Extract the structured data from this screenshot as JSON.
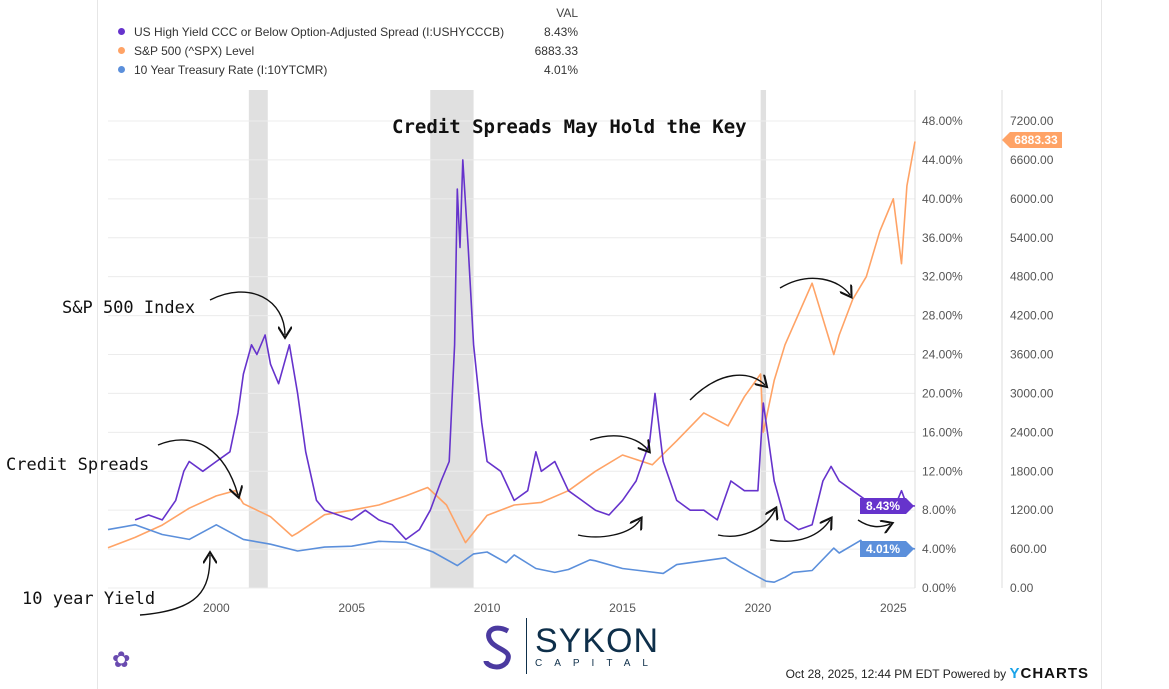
{
  "legend": {
    "header": "VAL",
    "items": [
      {
        "label": "US High Yield CCC or Below Option-Adjusted Spread (I:USHYCCCB)",
        "value": "8.43%",
        "color": "#6633cc"
      },
      {
        "label": "S&P 500 (^SPX) Level",
        "value": "6883.33",
        "color": "#ffa366"
      },
      {
        "label": "10 Year Treasury Rate (I:10YTCMR)",
        "value": "4.01%",
        "color": "#5b8fdb"
      }
    ]
  },
  "annotations": {
    "title": "Credit Spreads May Hold the Key",
    "sp500": "S&P 500 Index",
    "spreads": "Credit Spreads",
    "yield": "10 year Yield"
  },
  "footer": {
    "timestamp": "Oct 28, 2025, 12:44 PM EDT Powered by",
    "brand_y": "Y",
    "brand_rest": "CHARTS"
  },
  "logo": {
    "name": "SYKON",
    "sub": "CAPITAL"
  },
  "chart_data": {
    "type": "line",
    "title": "Credit Spreads May Hold the Key",
    "x_ticks": [
      2000,
      2005,
      2010,
      2015,
      2020,
      2025
    ],
    "xlim": [
      1996.0,
      2025.8
    ],
    "left_axis": {
      "ylim": [
        0,
        48
      ],
      "ticks": [
        "0.00%",
        "4.00%",
        "8.00%",
        "12.00%",
        "16.00%",
        "20.00%",
        "24.00%",
        "28.00%",
        "32.00%",
        "36.00%",
        "40.00%",
        "44.00%",
        "48.00%"
      ]
    },
    "right_axis": {
      "ylim": [
        0,
        7200
      ],
      "ticks": [
        "0.00",
        "600.00",
        "1200.00",
        "1800.00",
        "2400.00",
        "3000.00",
        "3600.00",
        "4200.00",
        "4800.00",
        "5400.00",
        "6000.00",
        "6600.00",
        "7200.00"
      ]
    },
    "recessions": [
      [
        2001.2,
        2001.9
      ],
      [
        2007.9,
        2009.5
      ],
      [
        2020.1,
        2020.3
      ]
    ],
    "series": [
      {
        "name": "US High Yield CCC or Below Option-Adjusted Spread",
        "axis": "left",
        "color": "#6633cc",
        "end_label": "8.43%",
        "x": [
          1997,
          1997.5,
          1998,
          1998.5,
          1998.8,
          1999,
          1999.5,
          2000,
          2000.5,
          2000.8,
          2001,
          2001.3,
          2001.5,
          2001.8,
          2002,
          2002.3,
          2002.7,
          2003,
          2003.3,
          2003.7,
          2004,
          2004.5,
          2005,
          2005.5,
          2006,
          2006.5,
          2007,
          2007.5,
          2007.9,
          2008.3,
          2008.6,
          2008.8,
          2008.9,
          2009,
          2009.1,
          2009.3,
          2009.5,
          2009.8,
          2010,
          2010.5,
          2011,
          2011.5,
          2011.8,
          2012,
          2012.5,
          2013,
          2013.5,
          2014,
          2014.5,
          2015,
          2015.5,
          2016,
          2016.2,
          2016.5,
          2017,
          2017.5,
          2018,
          2018.5,
          2019,
          2019.5,
          2020,
          2020.2,
          2020.3,
          2020.6,
          2021,
          2021.5,
          2022,
          2022.4,
          2022.7,
          2023,
          2023.5,
          2024,
          2024.5,
          2025,
          2025.3,
          2025.5,
          2025.8
        ],
        "y": [
          7,
          7.5,
          7,
          9,
          12,
          13,
          12,
          13,
          14,
          18,
          22,
          25,
          24,
          26,
          23,
          21,
          25,
          20,
          14,
          9,
          8,
          7.5,
          7,
          8,
          7,
          6.5,
          5,
          6,
          8,
          11,
          13,
          25,
          41,
          35,
          44,
          35,
          25,
          17,
          13,
          12,
          9,
          10,
          14,
          12,
          13,
          10,
          9,
          8,
          7.5,
          9,
          11,
          15,
          20,
          13,
          9,
          8,
          8,
          7,
          11,
          10,
          10,
          19,
          17,
          11,
          7,
          6,
          6.5,
          11,
          12.5,
          11,
          10,
          9,
          8.5,
          8,
          10,
          8.5,
          8.43
        ]
      },
      {
        "name": "S&P 500 Level",
        "axis": "right",
        "color": "#ffa366",
        "end_label": "6883.33",
        "x": [
          1996,
          1997,
          1998,
          1999,
          2000,
          2000.7,
          2001,
          2002,
          2002.8,
          2003,
          2004,
          2005,
          2006,
          2007,
          2007.8,
          2008.5,
          2009.2,
          2010,
          2011,
          2012,
          2013,
          2014,
          2015,
          2016.1,
          2017,
          2018,
          2018.9,
          2019.5,
          2020.1,
          2020.2,
          2020.6,
          2021,
          2022,
          2022.8,
          2023,
          2023.5,
          2024,
          2024.5,
          2025,
          2025.3,
          2025.5,
          2025.8
        ],
        "y": [
          620,
          780,
          970,
          1230,
          1420,
          1500,
          1300,
          1100,
          800,
          850,
          1130,
          1200,
          1280,
          1420,
          1550,
          1280,
          700,
          1120,
          1280,
          1320,
          1500,
          1800,
          2050,
          1900,
          2270,
          2700,
          2500,
          2950,
          3300,
          2400,
          3200,
          3750,
          4700,
          3600,
          3900,
          4450,
          4800,
          5500,
          6000,
          5000,
          6200,
          6883.33
        ]
      },
      {
        "name": "10 Year Treasury Rate",
        "axis": "left",
        "color": "#5b8fdb",
        "end_label": "4.01%",
        "x": [
          1996,
          1997,
          1998,
          1999,
          2000,
          2001,
          2002,
          2003,
          2004,
          2005,
          2006,
          2007,
          2008,
          2008.9,
          2009.5,
          2010,
          2010.7,
          2011,
          2011.8,
          2012.5,
          2013,
          2013.8,
          2014,
          2015,
          2016.5,
          2017,
          2018.8,
          2019,
          2019.7,
          2020.3,
          2020.6,
          2021,
          2021.3,
          2022,
          2022.8,
          2023,
          2023.8,
          2024,
          2024.5,
          2024.8,
          2025,
          2025.8
        ],
        "y": [
          6,
          6.5,
          5.5,
          5,
          6.5,
          5,
          4.5,
          3.8,
          4.2,
          4.3,
          4.8,
          4.7,
          3.7,
          2.3,
          3.5,
          3.7,
          2.6,
          3.4,
          2,
          1.6,
          1.9,
          2.9,
          2.8,
          2,
          1.5,
          2.4,
          3.1,
          2.7,
          1.6,
          0.7,
          0.6,
          1.1,
          1.6,
          1.8,
          4.1,
          3.6,
          4.9,
          4,
          4.4,
          3.7,
          4.6,
          4.01
        ]
      }
    ]
  }
}
